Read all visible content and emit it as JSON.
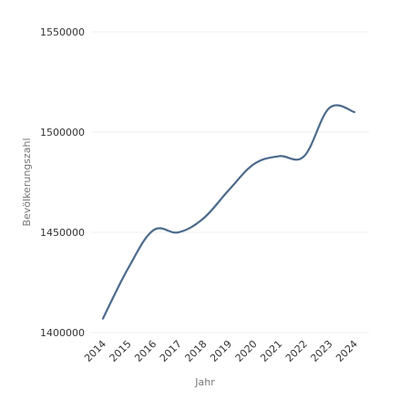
{
  "chart_data": {
    "type": "line",
    "title": "",
    "xlabel": "Jahr",
    "ylabel": "Bevölkerungszahl",
    "x": [
      "2014",
      "2015",
      "2016",
      "2017",
      "2018",
      "2019",
      "2020",
      "2021",
      "2022",
      "2023",
      "2024"
    ],
    "series": [
      {
        "values": [
          1407000,
          1432000,
          1451000,
          1450000,
          1457000,
          1471000,
          1484000,
          1488000,
          1488000,
          1512000,
          1510000
        ]
      }
    ],
    "ylim": [
      1400000,
      1550000
    ],
    "yticks": [
      "1400000",
      "1450000",
      "1500000",
      "1550000"
    ],
    "grid": true,
    "legend": "none",
    "colors": {
      "line": "#4d6a8c",
      "grid": "#efefef"
    }
  }
}
